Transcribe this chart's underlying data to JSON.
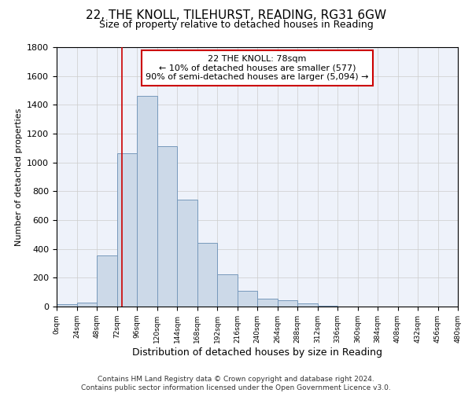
{
  "title": "22, THE KNOLL, TILEHURST, READING, RG31 6GW",
  "subtitle": "Size of property relative to detached houses in Reading",
  "xlabel": "Distribution of detached houses by size in Reading",
  "ylabel": "Number of detached properties",
  "bar_color": "#ccd9e8",
  "bar_edge_color": "#7799bb",
  "background_color": "#eef2fa",
  "grid_color": "#cccccc",
  "bins_left": [
    0,
    24,
    48,
    72,
    96,
    120,
    144,
    168,
    192,
    216,
    240,
    264,
    288,
    312,
    336,
    360,
    384,
    408,
    432,
    456
  ],
  "bin_width": 24,
  "counts": [
    15,
    30,
    355,
    1065,
    1460,
    1115,
    740,
    440,
    225,
    110,
    55,
    45,
    20,
    5,
    2,
    1,
    0,
    0,
    0,
    0
  ],
  "tick_labels": [
    "0sqm",
    "24sqm",
    "48sqm",
    "72sqm",
    "96sqm",
    "120sqm",
    "144sqm",
    "168sqm",
    "192sqm",
    "216sqm",
    "240sqm",
    "264sqm",
    "288sqm",
    "312sqm",
    "336sqm",
    "360sqm",
    "384sqm",
    "408sqm",
    "432sqm",
    "456sqm",
    "480sqm"
  ],
  "ylim": [
    0,
    1800
  ],
  "yticks": [
    0,
    200,
    400,
    600,
    800,
    1000,
    1200,
    1400,
    1600,
    1800
  ],
  "vline_x": 78,
  "vline_color": "#cc0000",
  "annotation_title": "22 THE KNOLL: 78sqm",
  "annotation_line1": "← 10% of detached houses are smaller (577)",
  "annotation_line2": "90% of semi-detached houses are larger (5,094) →",
  "annotation_box_color": "#ffffff",
  "annotation_box_edge": "#cc0000",
  "footer_line1": "Contains HM Land Registry data © Crown copyright and database right 2024.",
  "footer_line2": "Contains public sector information licensed under the Open Government Licence v3.0."
}
